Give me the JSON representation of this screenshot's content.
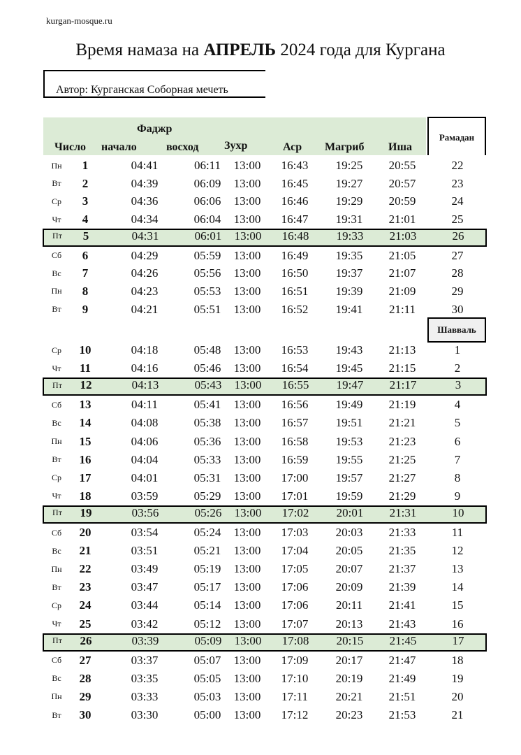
{
  "site": "kurgan-mosque.ru",
  "title": {
    "prefix": "Время намаза на ",
    "month": "АПРЕЛЬ",
    "suffix": " 2024 года для Кургана"
  },
  "author": "Автор: Курганская Соборная мечеть",
  "headers": {
    "fajr": "Фаджр",
    "day": "Число",
    "fajr_start": "начало",
    "sunrise": "восход",
    "zuhr": "Зухр",
    "asr": "Аср",
    "maghrib": "Магриб",
    "isha": "Иша"
  },
  "ramadan_label": "Рамадан",
  "shawwal_label": "Шавваль",
  "rows": [
    {
      "wd": "Пн",
      "d": "1",
      "f": "04:41",
      "s": "06:11",
      "z": "13:00",
      "a": "16:43",
      "m": "19:25",
      "i": "20:55",
      "h": "22"
    },
    {
      "wd": "Вт",
      "d": "2",
      "f": "04:39",
      "s": "06:09",
      "z": "13:00",
      "a": "16:45",
      "m": "19:27",
      "i": "20:57",
      "h": "23"
    },
    {
      "wd": "Ср",
      "d": "3",
      "f": "04:36",
      "s": "06:06",
      "z": "13:00",
      "a": "16:46",
      "m": "19:29",
      "i": "20:59",
      "h": "24"
    },
    {
      "wd": "Чт",
      "d": "4",
      "f": "04:34",
      "s": "06:04",
      "z": "13:00",
      "a": "16:47",
      "m": "19:31",
      "i": "21:01",
      "h": "25"
    },
    {
      "wd": "Пт",
      "d": "5",
      "f": "04:31",
      "s": "06:01",
      "z": "13:00",
      "a": "16:48",
      "m": "19:33",
      "i": "21:03",
      "h": "26"
    },
    {
      "wd": "Сб",
      "d": "6",
      "f": "04:29",
      "s": "05:59",
      "z": "13:00",
      "a": "16:49",
      "m": "19:35",
      "i": "21:05",
      "h": "27"
    },
    {
      "wd": "Вс",
      "d": "7",
      "f": "04:26",
      "s": "05:56",
      "z": "13:00",
      "a": "16:50",
      "m": "19:37",
      "i": "21:07",
      "h": "28"
    },
    {
      "wd": "Пн",
      "d": "8",
      "f": "04:23",
      "s": "05:53",
      "z": "13:00",
      "a": "16:51",
      "m": "19:39",
      "i": "21:09",
      "h": "29"
    },
    {
      "wd": "Вт",
      "d": "9",
      "f": "04:21",
      "s": "05:51",
      "z": "13:00",
      "a": "16:52",
      "m": "19:41",
      "i": "21:11",
      "h": "30"
    },
    {
      "wd": "Ср",
      "d": "10",
      "f": "04:18",
      "s": "05:48",
      "z": "13:00",
      "a": "16:53",
      "m": "19:43",
      "i": "21:13",
      "h": "1"
    },
    {
      "wd": "Чт",
      "d": "11",
      "f": "04:16",
      "s": "05:46",
      "z": "13:00",
      "a": "16:54",
      "m": "19:45",
      "i": "21:15",
      "h": "2"
    },
    {
      "wd": "Пт",
      "d": "12",
      "f": "04:13",
      "s": "05:43",
      "z": "13:00",
      "a": "16:55",
      "m": "19:47",
      "i": "21:17",
      "h": "3"
    },
    {
      "wd": "Сб",
      "d": "13",
      "f": "04:11",
      "s": "05:41",
      "z": "13:00",
      "a": "16:56",
      "m": "19:49",
      "i": "21:19",
      "h": "4"
    },
    {
      "wd": "Вс",
      "d": "14",
      "f": "04:08",
      "s": "05:38",
      "z": "13:00",
      "a": "16:57",
      "m": "19:51",
      "i": "21:21",
      "h": "5"
    },
    {
      "wd": "Пн",
      "d": "15",
      "f": "04:06",
      "s": "05:36",
      "z": "13:00",
      "a": "16:58",
      "m": "19:53",
      "i": "21:23",
      "h": "6"
    },
    {
      "wd": "Вт",
      "d": "16",
      "f": "04:04",
      "s": "05:33",
      "z": "13:00",
      "a": "16:59",
      "m": "19:55",
      "i": "21:25",
      "h": "7"
    },
    {
      "wd": "Ср",
      "d": "17",
      "f": "04:01",
      "s": "05:31",
      "z": "13:00",
      "a": "17:00",
      "m": "19:57",
      "i": "21:27",
      "h": "8"
    },
    {
      "wd": "Чт",
      "d": "18",
      "f": "03:59",
      "s": "05:29",
      "z": "13:00",
      "a": "17:01",
      "m": "19:59",
      "i": "21:29",
      "h": "9"
    },
    {
      "wd": "Пт",
      "d": "19",
      "f": "03:56",
      "s": "05:26",
      "z": "13:00",
      "a": "17:02",
      "m": "20:01",
      "i": "21:31",
      "h": "10"
    },
    {
      "wd": "Сб",
      "d": "20",
      "f": "03:54",
      "s": "05:24",
      "z": "13:00",
      "a": "17:03",
      "m": "20:03",
      "i": "21:33",
      "h": "11"
    },
    {
      "wd": "Вс",
      "d": "21",
      "f": "03:51",
      "s": "05:21",
      "z": "13:00",
      "a": "17:04",
      "m": "20:05",
      "i": "21:35",
      "h": "12"
    },
    {
      "wd": "Пн",
      "d": "22",
      "f": "03:49",
      "s": "05:19",
      "z": "13:00",
      "a": "17:05",
      "m": "20:07",
      "i": "21:37",
      "h": "13"
    },
    {
      "wd": "Вт",
      "d": "23",
      "f": "03:47",
      "s": "05:17",
      "z": "13:00",
      "a": "17:06",
      "m": "20:09",
      "i": "21:39",
      "h": "14"
    },
    {
      "wd": "Ср",
      "d": "24",
      "f": "03:44",
      "s": "05:14",
      "z": "13:00",
      "a": "17:06",
      "m": "20:11",
      "i": "21:41",
      "h": "15"
    },
    {
      "wd": "Чт",
      "d": "25",
      "f": "03:42",
      "s": "05:12",
      "z": "13:00",
      "a": "17:07",
      "m": "20:13",
      "i": "21:43",
      "h": "16"
    },
    {
      "wd": "Пт",
      "d": "26",
      "f": "03:39",
      "s": "05:09",
      "z": "13:00",
      "a": "17:08",
      "m": "20:15",
      "i": "21:45",
      "h": "17"
    },
    {
      "wd": "Сб",
      "d": "27",
      "f": "03:37",
      "s": "05:07",
      "z": "13:00",
      "a": "17:09",
      "m": "20:17",
      "i": "21:47",
      "h": "18"
    },
    {
      "wd": "Вс",
      "d": "28",
      "f": "03:35",
      "s": "05:05",
      "z": "13:00",
      "a": "17:10",
      "m": "20:19",
      "i": "21:49",
      "h": "19"
    },
    {
      "wd": "Пн",
      "d": "29",
      "f": "03:33",
      "s": "05:03",
      "z": "13:00",
      "a": "17:11",
      "m": "20:21",
      "i": "21:51",
      "h": "20"
    },
    {
      "wd": "Вт",
      "d": "30",
      "f": "03:30",
      "s": "05:00",
      "z": "13:00",
      "a": "17:12",
      "m": "20:23",
      "i": "21:53",
      "h": "21"
    }
  ]
}
